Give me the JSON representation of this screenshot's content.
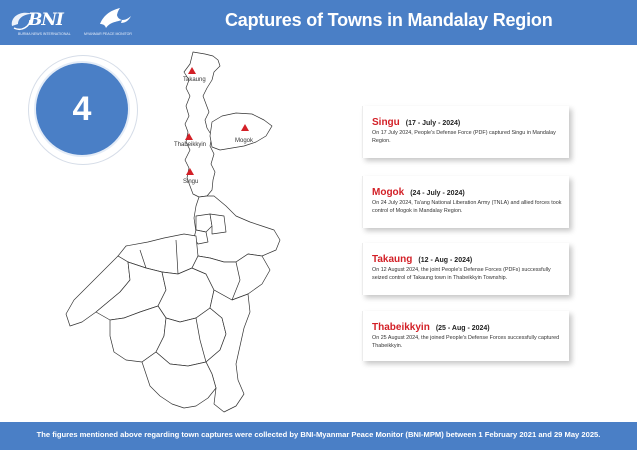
{
  "header": {
    "logo_text": "BNI",
    "logo_subtitle": "BURMA NEWS INTERNATIONAL",
    "partner_label": "MYANMAR PEACE MONITOR",
    "title": "Captures of Towns in Mandalay Region"
  },
  "count": "4",
  "map": {
    "region": "Mandalay Region",
    "towns": [
      {
        "name": "Takaung"
      },
      {
        "name": "Thabeikkyin"
      },
      {
        "name": "Mogok"
      },
      {
        "name": "Singu"
      }
    ],
    "colors": {
      "marker": "#d32027",
      "outline": "#333333",
      "fill": "#ffffff"
    }
  },
  "events": [
    {
      "town": "Singu",
      "date": "(17 - July - 2024)",
      "text": "On 17 July 2024, People's Defense Force (PDF) captured Singu in Mandalay Region."
    },
    {
      "town": "Mogok",
      "date": "(24 - July - 2024)",
      "text": "On 24 July 2024, Ta'ang National Liberation Army (TNLA) and allied forces took control of Mogok in Mandalay Region."
    },
    {
      "town": "Takaung",
      "date": "(12 - Aug - 2024)",
      "text": "On 12 August 2024, the joint People's Defense Forces (PDFs) successfully seized control of Takaung town in Thabeikkyin Township."
    },
    {
      "town": "Thabeikkyin",
      "date": "(25 - Aug - 2024)",
      "text": "On 25 August 2024, the joined People's Defense Forces successfully captured Thabeikkyin."
    }
  ],
  "footer": "The figures mentioned above regarding town captures were collected by BNI-Myanmar Peace Monitor (BNI-MPM) between 1 February 2021 and 29 May 2025.",
  "colors": {
    "brand_blue": "#4a7fc6",
    "accent_red": "#d32027"
  }
}
